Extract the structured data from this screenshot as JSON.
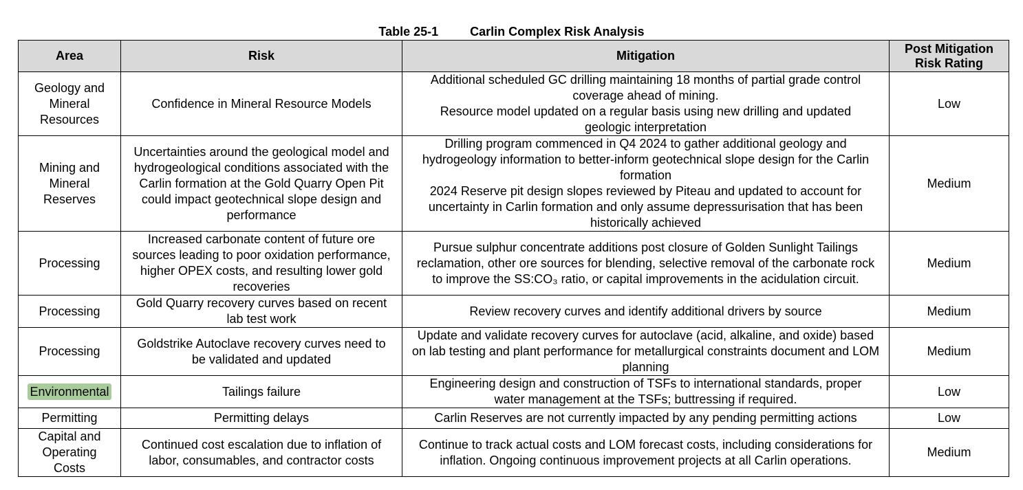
{
  "caption": {
    "number": "Table 25-1",
    "title": "Carlin Complex Risk Analysis"
  },
  "headers": {
    "area": "Area",
    "risk": "Risk",
    "mitigation": "Mitigation",
    "rating_line1": "Post Mitigation",
    "rating_line2": "Risk Rating"
  },
  "rows": [
    {
      "area": "Geology and Mineral Resources",
      "risk": "Confidence in Mineral Resource Models",
      "mitigation": [
        "Additional scheduled GC drilling maintaining 18 months of partial grade control coverage ahead of mining.",
        "Resource model updated on a regular basis using new drilling and updated geologic interpretation"
      ],
      "rating": "Low"
    },
    {
      "area": "Mining and Mineral Reserves",
      "risk": "Uncertainties around the geological model and hydrogeological conditions associated with the Carlin formation at the Gold Quarry Open Pit could impact geotechnical slope design and performance",
      "mitigation": [
        "Drilling program commenced in Q4 2024 to gather additional geology and hydrogeology information to better-inform geotechnical slope design for the Carlin formation",
        "2024 Reserve pit design slopes reviewed by Piteau and updated to account for uncertainty in Carlin formation and only assume depressurisation that has been historically achieved"
      ],
      "rating": "Medium"
    },
    {
      "area": "Processing",
      "risk": "Increased carbonate content of future ore sources leading to poor oxidation performance, higher OPEX costs, and resulting lower gold recoveries",
      "mitigation": [
        "Pursue sulphur concentrate additions post closure of Golden Sunlight Tailings reclamation, other ore sources for blending, selective removal of the carbonate rock to improve the SS:CO₃ ratio, or capital improvements in the acidulation circuit."
      ],
      "rating": "Medium"
    },
    {
      "area": "Processing",
      "risk": "Gold Quarry recovery curves based on recent lab test work",
      "mitigation": [
        "Review recovery curves and identify additional drivers by source"
      ],
      "rating": "Medium"
    },
    {
      "area": "Processing",
      "risk": "Goldstrike Autoclave recovery curves need to be validated and updated",
      "mitigation": [
        "Update and validate recovery curves for autoclave (acid, alkaline, and oxide) based on lab testing and plant performance for metallurgical constraints document and LOM planning"
      ],
      "rating": "Medium"
    },
    {
      "area": "Environmental",
      "risk": "Tailings failure",
      "mitigation": [
        "Engineering design and construction of TSFs to international standards, proper water management at the TSFs; buttressing if required."
      ],
      "rating": "Low"
    },
    {
      "area": "Permitting",
      "risk": "Permitting delays",
      "mitigation": [
        "Carlin Reserves are not currently impacted by any pending permitting actions"
      ],
      "rating": "Low"
    },
    {
      "area": "Capital and Operating Costs",
      "risk": "Continued cost escalation due to inflation of labor, consumables, and contractor costs",
      "mitigation": [
        "Continue to track actual costs and LOM forecast costs, including considerations for inflation. Ongoing continuous improvement projects at all Carlin operations."
      ],
      "rating": "Medium"
    }
  ],
  "highlight_color": "#a9cc9b",
  "header_background": "#d9d9d9"
}
